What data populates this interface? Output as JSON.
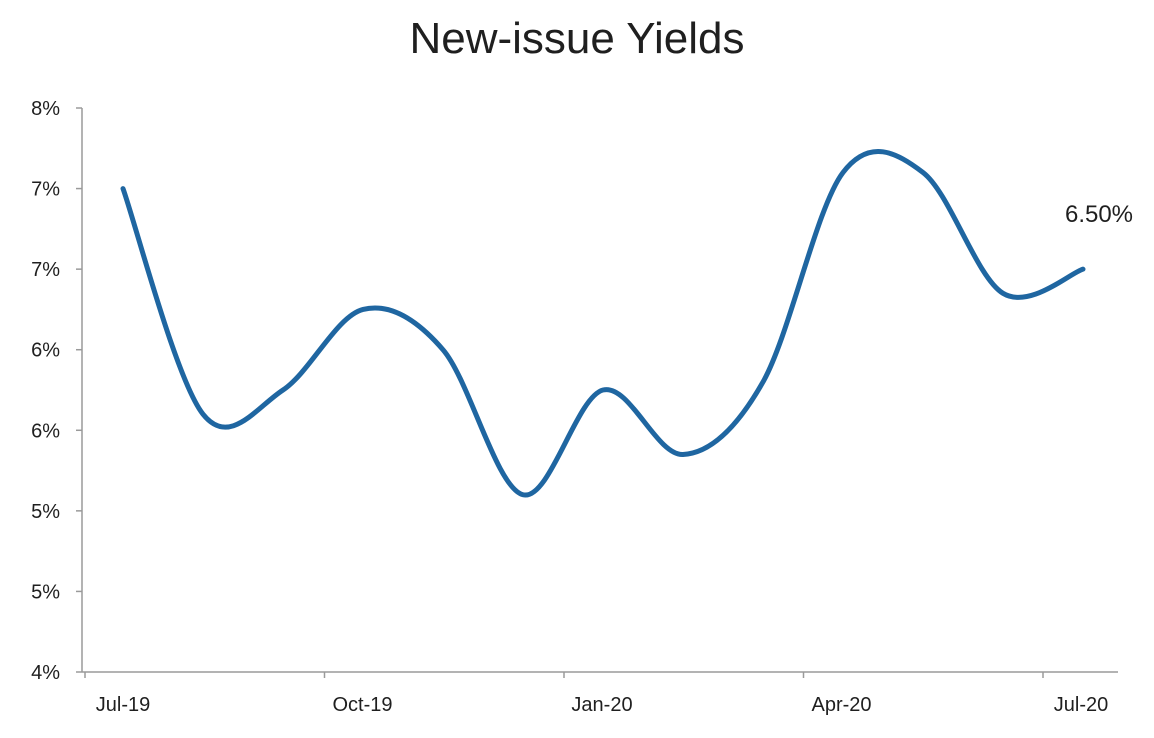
{
  "chart_data": {
    "type": "line",
    "title": "New-issue Yields",
    "xlabel": "",
    "ylabel": "",
    "x_tick_labels": [
      "Jul-19",
      "Oct-19",
      "Jan-20",
      "Apr-20",
      "Jul-20"
    ],
    "x_tick_dates": [
      "2019-07",
      "2019-10",
      "2020-01",
      "2020-04",
      "2020-07"
    ],
    "y_tick_labels": [
      "4%",
      "5%",
      "5%",
      "6%",
      "6%",
      "7%",
      "7%",
      "8%"
    ],
    "y_tick_values": [
      4.0,
      4.5,
      5.0,
      5.5,
      6.0,
      6.5,
      7.0,
      7.5
    ],
    "ylim": [
      4.0,
      7.5
    ],
    "grid": false,
    "legend": "none",
    "series": [
      {
        "color": "#1f66a1",
        "smooth": true,
        "points": [
          {
            "x": "2019-07",
            "y": 7.0
          },
          {
            "x": "2019-08",
            "y": 5.6
          },
          {
            "x": "2019-09",
            "y": 5.75
          },
          {
            "x": "2019-10",
            "y": 6.25
          },
          {
            "x": "2019-11",
            "y": 6.0
          },
          {
            "x": "2019-12",
            "y": 5.1
          },
          {
            "x": "2020-01",
            "y": 5.75
          },
          {
            "x": "2020-02",
            "y": 5.35
          },
          {
            "x": "2020-03",
            "y": 5.8
          },
          {
            "x": "2020-04",
            "y": 7.1
          },
          {
            "x": "2020-05",
            "y": 7.1
          },
          {
            "x": "2020-06",
            "y": 6.35
          },
          {
            "x": "2020-07",
            "y": 6.5
          }
        ]
      }
    ],
    "annotations": [
      {
        "text": "6.50%",
        "x": "2020-07",
        "y": 6.5
      }
    ]
  }
}
